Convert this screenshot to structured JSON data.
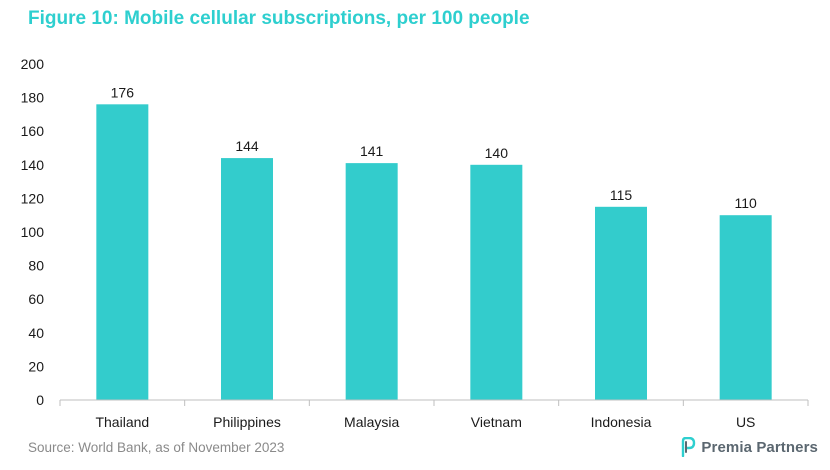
{
  "page": {
    "title": "Figure 10: Mobile cellular subscriptions, per 100 people",
    "source": "Source: World Bank, as of November 2023",
    "logo_text": "Premia Partners",
    "logo_icon": "premia-logo-icon"
  },
  "colors": {
    "title": "#2ecfcf",
    "bar": "#33cccc",
    "axis": "#bfbfbf",
    "text": "#1a1a1a",
    "source": "#8a8a8a"
  },
  "chart_data": {
    "type": "bar",
    "title": "Figure 10: Mobile cellular subscriptions, per 100 people",
    "xlabel": "",
    "ylabel": "",
    "categories": [
      "Thailand",
      "Philippines",
      "Malaysia",
      "Vietnam",
      "Indonesia",
      "US"
    ],
    "values": [
      176,
      144,
      141,
      140,
      115,
      110
    ],
    "data_labels": [
      "176",
      "144",
      "141",
      "140",
      "115",
      "110"
    ],
    "ylim": [
      0,
      200
    ],
    "yticks": [
      0,
      20,
      40,
      60,
      80,
      100,
      120,
      140,
      160,
      180,
      200
    ],
    "ytick_labels": [
      "0",
      "20",
      "40",
      "60",
      "80",
      "100",
      "120",
      "140",
      "160",
      "180",
      "200"
    ],
    "grid": false,
    "legend": "none"
  }
}
